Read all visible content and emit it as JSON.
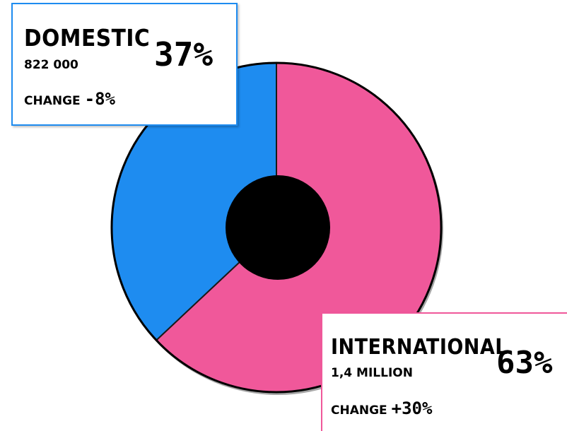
{
  "chart_data": {
    "type": "pie",
    "categories": [
      "Domestic",
      "International"
    ],
    "values": [
      37,
      63
    ],
    "slices": [
      {
        "name": "Domestic",
        "percent": "37%",
        "count": "822 000",
        "change_label": "CHANGE",
        "change": "-8%",
        "color": "#1e8cf0"
      },
      {
        "name": "International",
        "percent": "63%",
        "count": "1,4 MILLION",
        "change_label": "CHANGE",
        "change": "+30%",
        "color": "#f0589a"
      }
    ],
    "donut_hole_color": "#000000",
    "outline_color": "#000000"
  }
}
